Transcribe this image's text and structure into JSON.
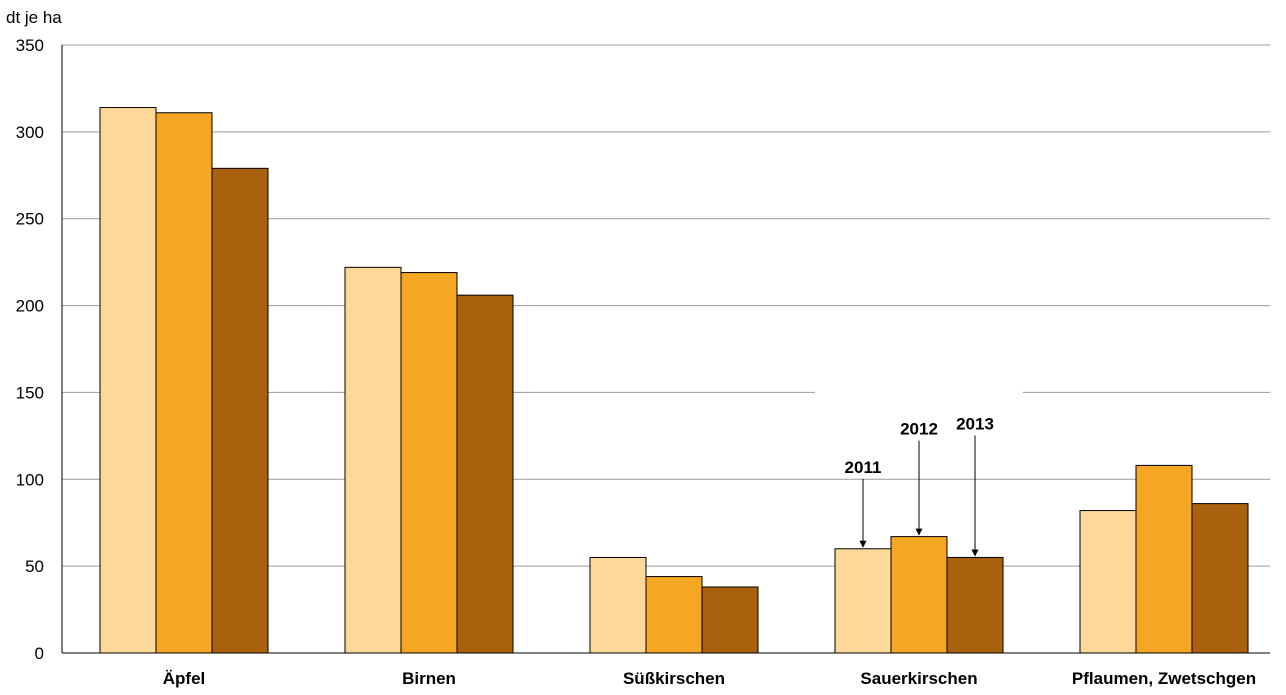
{
  "chart_data": {
    "type": "bar",
    "unit_label": "dt je ha",
    "categories": [
      "Äpfel",
      "Birnen",
      "Süßkirschen",
      "Sauerkirschen",
      "Pflaumen, Zwetschgen"
    ],
    "series": [
      {
        "name": "2011",
        "color": "#FDD899",
        "values": [
          314,
          222,
          55,
          60,
          82
        ]
      },
      {
        "name": "2012",
        "color": "#F5A623",
        "values": [
          311,
          219,
          44,
          67,
          108
        ]
      },
      {
        "name": "2013",
        "color": "#AA610D",
        "values": [
          279,
          206,
          38,
          55,
          86
        ]
      }
    ],
    "annotation_category": "Sauerkirschen",
    "ylim": [
      0,
      350
    ],
    "yticks": [
      0,
      50,
      100,
      150,
      200,
      250,
      300,
      350
    ],
    "grid": true,
    "xlabel": "",
    "ylabel": "dt je ha"
  }
}
